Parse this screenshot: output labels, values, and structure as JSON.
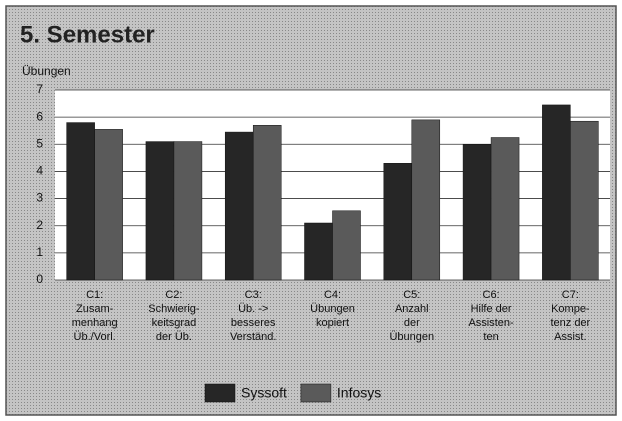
{
  "chart_data": {
    "type": "bar",
    "title": "5. Semester",
    "y_label": "Übungen",
    "categories": [
      "C1:\nZusam-\nmenhang\nÜb./Vorl.",
      "C2:\nSchwierig-\nkeitsgrad\nder Üb.",
      "C3:\nÜb. ->\nbesseres\nVerständ.",
      "C4:\nÜbungen\nkopiert",
      "C5:\nAnzahl\nder\nÜbungen",
      "C6:\nHilfe der\nAssisten-\nten",
      "C7:\nKompe-\ntenz der\nAssist."
    ],
    "series": [
      {
        "name": "Syssoft",
        "color": "#262626",
        "values": [
          5.8,
          5.1,
          5.45,
          2.1,
          4.3,
          5.0,
          6.45
        ]
      },
      {
        "name": "Infosys",
        "color": "#5a5a5a",
        "values": [
          5.55,
          5.1,
          5.7,
          2.55,
          5.9,
          5.25,
          5.85
        ]
      }
    ],
    "ylim": [
      0,
      7
    ],
    "yticks": [
      0,
      1,
      2,
      3,
      4,
      5,
      6,
      7
    ],
    "grid": true
  }
}
